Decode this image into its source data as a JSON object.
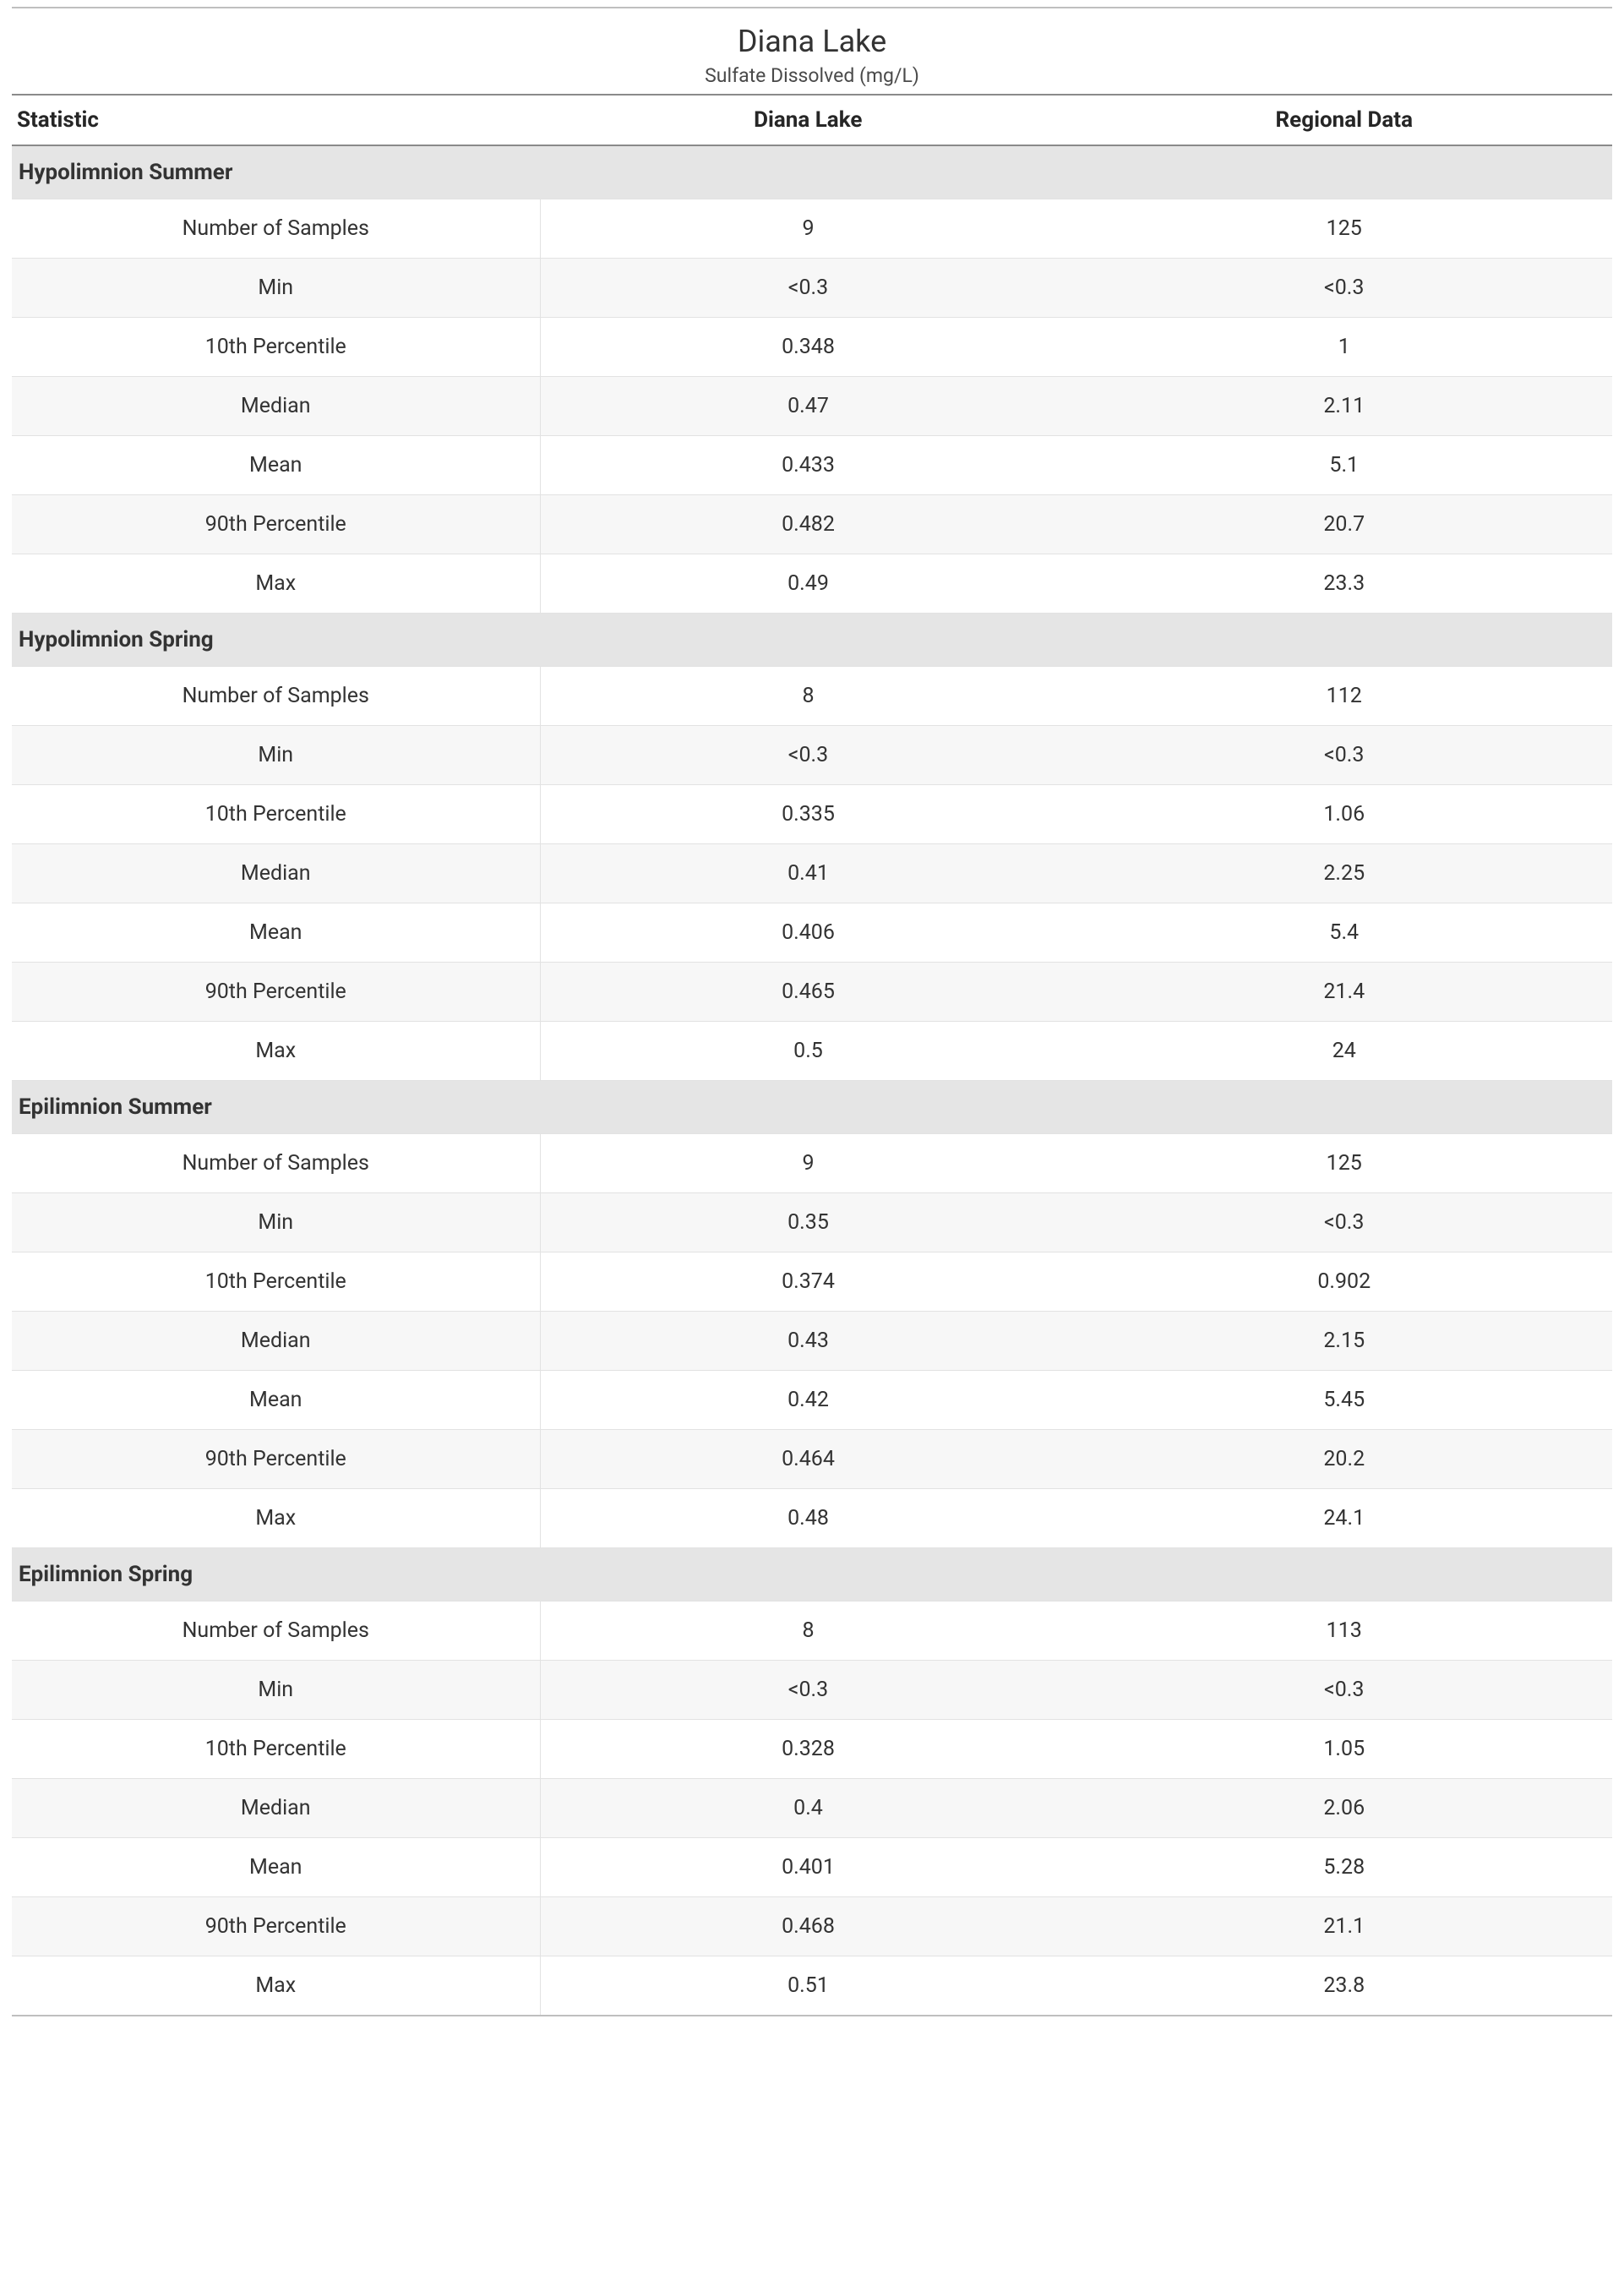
{
  "title": "Diana Lake",
  "subtitle": "Sulfate Dissolved (mg/L)",
  "columns": {
    "stat": "Statistic",
    "site": "Diana Lake",
    "region": "Regional Data"
  },
  "stat_labels": [
    "Number of Samples",
    "Min",
    "10th Percentile",
    "Median",
    "Mean",
    "90th Percentile",
    "Max"
  ],
  "sections": [
    {
      "name": "Hypolimnion Summer",
      "site": [
        "9",
        "<0.3",
        "0.348",
        "0.47",
        "0.433",
        "0.482",
        "0.49"
      ],
      "region": [
        "125",
        "<0.3",
        "1",
        "2.11",
        "5.1",
        "20.7",
        "23.3"
      ]
    },
    {
      "name": "Hypolimnion Spring",
      "site": [
        "8",
        "<0.3",
        "0.335",
        "0.41",
        "0.406",
        "0.465",
        "0.5"
      ],
      "region": [
        "112",
        "<0.3",
        "1.06",
        "2.25",
        "5.4",
        "21.4",
        "24"
      ]
    },
    {
      "name": "Epilimnion Summer",
      "site": [
        "9",
        "0.35",
        "0.374",
        "0.43",
        "0.42",
        "0.464",
        "0.48"
      ],
      "region": [
        "125",
        "<0.3",
        "0.902",
        "2.15",
        "5.45",
        "20.2",
        "24.1"
      ]
    },
    {
      "name": "Epilimnion Spring",
      "site": [
        "8",
        "<0.3",
        "0.328",
        "0.4",
        "0.401",
        "0.468",
        "0.51"
      ],
      "region": [
        "113",
        "<0.3",
        "1.05",
        "2.06",
        "5.28",
        "21.1",
        "23.8"
      ]
    }
  ],
  "colors": {
    "section_bg": "#e5e5e5",
    "alt_row_bg": "#f7f7f7",
    "border": "#e2e2e2",
    "header_border": "#8a8a8a",
    "text": "#333333"
  }
}
